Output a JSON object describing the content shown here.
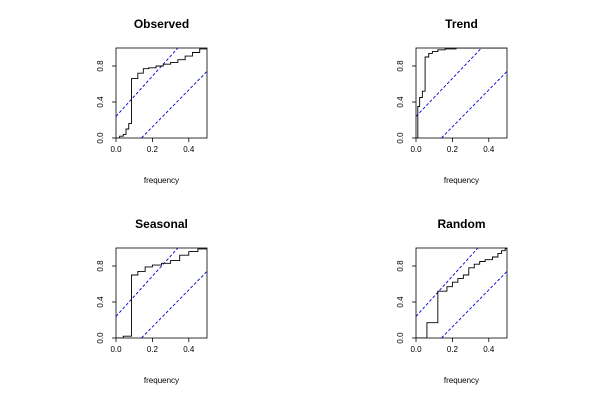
{
  "chart_data": [
    {
      "type": "line",
      "title": "Observed",
      "xlabel": "frequency",
      "ylabel": "",
      "xlim": [
        0,
        0.5
      ],
      "ylim": [
        0,
        1
      ],
      "xticks": [
        0.0,
        0.2,
        0.4
      ],
      "xtick_labels": [
        "0.0",
        "0.2",
        "0.4"
      ],
      "yticks": [
        0.0,
        0.4,
        0.8
      ],
      "ytick_labels": [
        "0.0",
        "0.4",
        "0.8"
      ],
      "grid": false,
      "step_points": [
        [
          0.0,
          0.0
        ],
        [
          0.02,
          0.02
        ],
        [
          0.04,
          0.04
        ],
        [
          0.055,
          0.1
        ],
        [
          0.07,
          0.16
        ],
        [
          0.085,
          0.66
        ],
        [
          0.12,
          0.72
        ],
        [
          0.15,
          0.77
        ],
        [
          0.18,
          0.78
        ],
        [
          0.22,
          0.8
        ],
        [
          0.26,
          0.82
        ],
        [
          0.3,
          0.84
        ],
        [
          0.34,
          0.87
        ],
        [
          0.38,
          0.91
        ],
        [
          0.42,
          0.95
        ],
        [
          0.46,
          0.99
        ],
        [
          0.5,
          1.0
        ]
      ],
      "confidence_lines": [
        {
          "x": [
            0.0,
            0.34
          ],
          "y": [
            0.24,
            1.0
          ]
        },
        {
          "x": [
            0.14,
            0.5
          ],
          "y": [
            0.0,
            0.74
          ]
        }
      ],
      "colors": {
        "step": "#000000",
        "confidence": "#0000cc"
      }
    },
    {
      "type": "line",
      "title": "Trend",
      "xlabel": "frequency",
      "ylabel": "",
      "xlim": [
        0,
        0.5
      ],
      "ylim": [
        0,
        1
      ],
      "xticks": [
        0.0,
        0.2,
        0.4
      ],
      "xtick_labels": [
        "0.0",
        "0.2",
        "0.4"
      ],
      "yticks": [
        0.0,
        0.4,
        0.8
      ],
      "ytick_labels": [
        "0.0",
        "0.4",
        "0.8"
      ],
      "grid": false,
      "step_points": [
        [
          0.0,
          0.0
        ],
        [
          0.01,
          0.35
        ],
        [
          0.02,
          0.45
        ],
        [
          0.035,
          0.52
        ],
        [
          0.05,
          0.9
        ],
        [
          0.07,
          0.94
        ],
        [
          0.09,
          0.96
        ],
        [
          0.12,
          0.98
        ],
        [
          0.16,
          0.99
        ],
        [
          0.22,
          1.0
        ],
        [
          0.5,
          1.0
        ]
      ],
      "confidence_lines": [
        {
          "x": [
            0.0,
            0.36
          ],
          "y": [
            0.24,
            1.0
          ]
        },
        {
          "x": [
            0.14,
            0.5
          ],
          "y": [
            0.0,
            0.74
          ]
        }
      ],
      "colors": {
        "step": "#000000",
        "confidence": "#0000cc"
      }
    },
    {
      "type": "line",
      "title": "Seasonal",
      "xlabel": "frequency",
      "ylabel": "",
      "xlim": [
        0,
        0.5
      ],
      "ylim": [
        0,
        1
      ],
      "xticks": [
        0.0,
        0.2,
        0.4
      ],
      "xtick_labels": [
        "0.0",
        "0.2",
        "0.4"
      ],
      "yticks": [
        0.0,
        0.4,
        0.8
      ],
      "ytick_labels": [
        "0.0",
        "0.4",
        "0.8"
      ],
      "grid": false,
      "step_points": [
        [
          0.0,
          0.0
        ],
        [
          0.04,
          0.02
        ],
        [
          0.085,
          0.7
        ],
        [
          0.12,
          0.74
        ],
        [
          0.16,
          0.79
        ],
        [
          0.2,
          0.81
        ],
        [
          0.25,
          0.83
        ],
        [
          0.3,
          0.86
        ],
        [
          0.35,
          0.92
        ],
        [
          0.4,
          0.96
        ],
        [
          0.45,
          0.99
        ],
        [
          0.5,
          1.0
        ]
      ],
      "confidence_lines": [
        {
          "x": [
            0.0,
            0.34
          ],
          "y": [
            0.24,
            1.0
          ]
        },
        {
          "x": [
            0.14,
            0.5
          ],
          "y": [
            0.0,
            0.74
          ]
        }
      ],
      "colors": {
        "step": "#000000",
        "confidence": "#0000cc"
      }
    },
    {
      "type": "line",
      "title": "Random",
      "xlabel": "frequency",
      "ylabel": "",
      "xlim": [
        0,
        0.5
      ],
      "ylim": [
        0,
        1
      ],
      "xticks": [
        0.0,
        0.2,
        0.4
      ],
      "xtick_labels": [
        "0.0",
        "0.2",
        "0.4"
      ],
      "yticks": [
        0.0,
        0.4,
        0.8
      ],
      "ytick_labels": [
        "0.0",
        "0.4",
        "0.8"
      ],
      "grid": false,
      "step_points": [
        [
          0.0,
          0.0
        ],
        [
          0.06,
          0.17
        ],
        [
          0.12,
          0.52
        ],
        [
          0.17,
          0.57
        ],
        [
          0.2,
          0.62
        ],
        [
          0.23,
          0.66
        ],
        [
          0.26,
          0.7
        ],
        [
          0.29,
          0.78
        ],
        [
          0.32,
          0.82
        ],
        [
          0.35,
          0.85
        ],
        [
          0.38,
          0.87
        ],
        [
          0.42,
          0.9
        ],
        [
          0.45,
          0.94
        ],
        [
          0.47,
          0.97
        ],
        [
          0.49,
          0.99
        ],
        [
          0.5,
          1.0
        ]
      ],
      "confidence_lines": [
        {
          "x": [
            0.0,
            0.34
          ],
          "y": [
            0.24,
            1.0
          ]
        },
        {
          "x": [
            0.14,
            0.5
          ],
          "y": [
            0.0,
            0.74
          ]
        }
      ],
      "colors": {
        "step": "#000000",
        "confidence": "#0000cc"
      }
    }
  ]
}
